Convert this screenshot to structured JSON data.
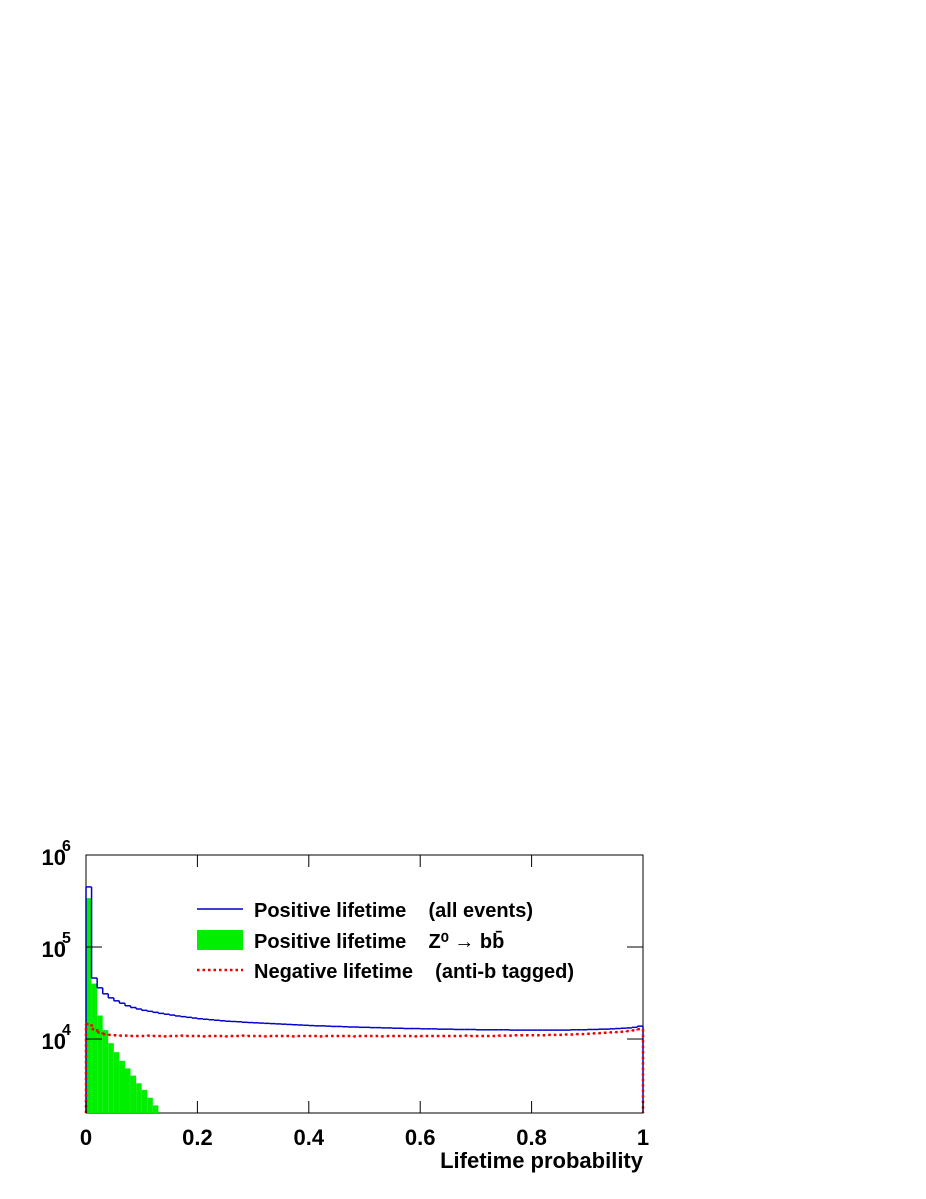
{
  "chart_data": {
    "type": "histogram",
    "xlabel": "Lifetime probability",
    "xlim": [
      0,
      1
    ],
    "xticks": [
      0,
      0.2,
      0.4,
      0.6,
      0.8,
      1
    ],
    "ylim": [
      1570,
      1000000
    ],
    "log_y": true,
    "yticks": [
      {
        "value": 10000,
        "label": "10",
        "exponent": "4"
      },
      {
        "value": 100000,
        "label": "10",
        "exponent": "5"
      },
      {
        "value": 1000000,
        "label": "10",
        "exponent": "6"
      }
    ],
    "legend": "top-right",
    "series": [
      {
        "name": "Positive lifetime    (all events)",
        "style": "line",
        "color": "#0000cc",
        "bins": [
          0,
          0.01,
          0.02,
          0.03,
          0.04,
          0.05,
          0.06,
          0.07,
          0.08,
          0.09,
          0.1,
          0.11,
          0.12,
          0.13,
          0.14,
          0.15,
          0.16,
          0.17,
          0.18,
          0.19,
          0.2,
          0.21,
          0.22,
          0.23,
          0.24,
          0.25,
          0.26,
          0.27,
          0.28,
          0.29,
          0.3,
          0.31,
          0.32,
          0.33,
          0.34,
          0.35,
          0.36,
          0.37,
          0.38,
          0.39,
          0.4,
          0.41,
          0.42,
          0.43,
          0.44,
          0.45,
          0.46,
          0.47,
          0.48,
          0.49,
          0.5,
          0.51,
          0.52,
          0.53,
          0.54,
          0.55,
          0.56,
          0.57,
          0.58,
          0.59,
          0.6,
          0.61,
          0.62,
          0.63,
          0.64,
          0.65,
          0.66,
          0.67,
          0.68,
          0.69,
          0.7,
          0.71,
          0.72,
          0.73,
          0.74,
          0.75,
          0.76,
          0.77,
          0.78,
          0.79,
          0.8,
          0.81,
          0.82,
          0.83,
          0.84,
          0.85,
          0.86,
          0.87,
          0.88,
          0.89,
          0.9,
          0.91,
          0.92,
          0.93,
          0.94,
          0.95,
          0.96,
          0.97,
          0.98,
          0.99,
          1
        ],
        "values": [
          450000,
          46000,
          36000,
          31000,
          28000,
          26000,
          24500,
          23000,
          22000,
          21200,
          20500,
          20000,
          19500,
          19000,
          18600,
          18200,
          17800,
          17500,
          17200,
          16900,
          16600,
          16400,
          16200,
          16000,
          15800,
          15600,
          15500,
          15400,
          15200,
          15100,
          15000,
          14900,
          14800,
          14700,
          14600,
          14500,
          14400,
          14300,
          14200,
          14100,
          14000,
          13900,
          13900,
          13800,
          13700,
          13700,
          13600,
          13500,
          13500,
          13400,
          13400,
          13300,
          13300,
          13200,
          13200,
          13100,
          13100,
          13000,
          13000,
          13000,
          12900,
          12900,
          12900,
          12800,
          12800,
          12800,
          12700,
          12700,
          12700,
          12700,
          12600,
          12600,
          12600,
          12600,
          12600,
          12600,
          12500,
          12500,
          12500,
          12500,
          12500,
          12500,
          12500,
          12500,
          12500,
          12500,
          12500,
          12600,
          12600,
          12600,
          12700,
          12700,
          12800,
          12800,
          12900,
          13000,
          13100,
          13200,
          13400,
          13800
        ]
      },
      {
        "name": "Positive lifetime    Z⁰ → bb̄",
        "style": "fill",
        "color": "#00ee00",
        "bins": [
          0,
          0.01,
          0.02,
          0.03,
          0.04,
          0.05,
          0.06,
          0.07,
          0.08,
          0.09,
          0.1,
          0.11,
          0.12,
          0.13
        ],
        "values": [
          340000,
          40000,
          18000,
          12500,
          9000,
          7200,
          5800,
          4800,
          4000,
          3300,
          2800,
          2300,
          1900
        ]
      },
      {
        "name": "Negative lifetime    (anti-b tagged)",
        "style": "dotted",
        "color": "#ee0000",
        "bins": [
          0,
          0.01,
          0.02,
          0.03,
          0.04,
          0.05,
          0.06,
          0.07,
          0.08,
          0.09,
          0.1,
          0.11,
          0.12,
          0.13,
          0.14,
          0.15,
          0.16,
          0.17,
          0.18,
          0.19,
          0.2,
          0.21,
          0.22,
          0.23,
          0.24,
          0.25,
          0.26,
          0.27,
          0.28,
          0.29,
          0.3,
          0.31,
          0.32,
          0.33,
          0.34,
          0.35,
          0.36,
          0.37,
          0.38,
          0.39,
          0.4,
          0.41,
          0.42,
          0.43,
          0.44,
          0.45,
          0.46,
          0.47,
          0.48,
          0.49,
          0.5,
          0.51,
          0.52,
          0.53,
          0.54,
          0.55,
          0.56,
          0.57,
          0.58,
          0.59,
          0.6,
          0.61,
          0.62,
          0.63,
          0.64,
          0.65,
          0.66,
          0.67,
          0.68,
          0.69,
          0.7,
          0.71,
          0.72,
          0.73,
          0.74,
          0.75,
          0.76,
          0.77,
          0.78,
          0.79,
          0.8,
          0.81,
          0.82,
          0.83,
          0.84,
          0.85,
          0.86,
          0.87,
          0.88,
          0.89,
          0.9,
          0.91,
          0.92,
          0.93,
          0.94,
          0.95,
          0.96,
          0.97,
          0.98,
          0.99,
          1
        ],
        "values": [
          14500,
          12800,
          11800,
          11300,
          11100,
          11000,
          10900,
          10900,
          10800,
          10800,
          10800,
          10900,
          10800,
          10800,
          10700,
          10800,
          10800,
          10900,
          10800,
          10800,
          10800,
          10700,
          10800,
          10800,
          10800,
          10700,
          10800,
          10800,
          10900,
          10800,
          10800,
          10800,
          10700,
          10800,
          10800,
          10800,
          10800,
          10700,
          10800,
          10800,
          10800,
          10800,
          10700,
          10800,
          10800,
          10800,
          10800,
          10800,
          10700,
          10800,
          10800,
          10800,
          10800,
          10700,
          10800,
          10800,
          10800,
          10800,
          10800,
          10700,
          10800,
          10800,
          10800,
          10800,
          10800,
          10800,
          10800,
          10800,
          10900,
          10800,
          10800,
          10800,
          10800,
          10800,
          10900,
          10900,
          10900,
          11000,
          11000,
          11000,
          11000,
          11000,
          11000,
          11100,
          11100,
          11100,
          11200,
          11200,
          11300,
          11300,
          11400,
          11500,
          11600,
          11700,
          11800,
          11900,
          12000,
          12200,
          12400,
          12800
        ]
      }
    ]
  }
}
